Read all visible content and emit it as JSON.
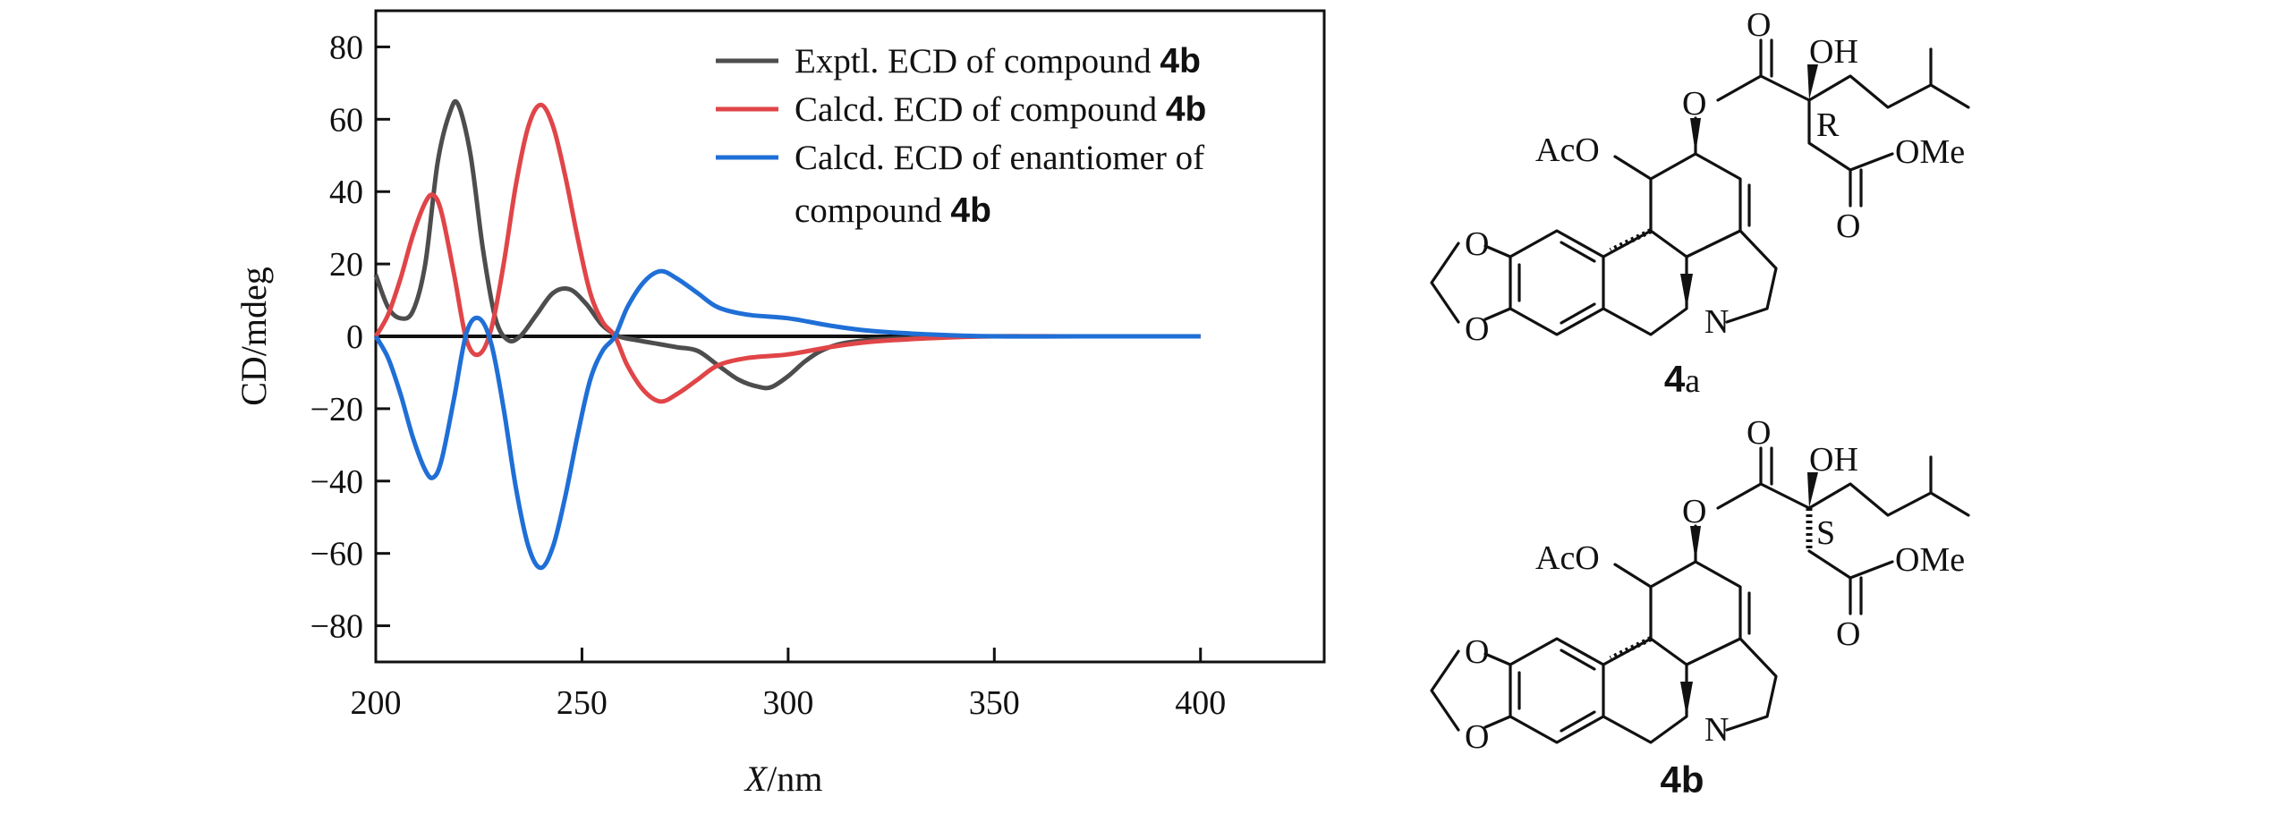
{
  "chart_data": {
    "type": "line",
    "xlabel": "X/nm",
    "xlabel_italic": "X",
    "xlabel_unit": "/nm",
    "ylabel": "CD/mdeg",
    "xlim": [
      200,
      430
    ],
    "ylim": [
      -90,
      90
    ],
    "xticks": [
      200,
      250,
      300,
      350,
      400
    ],
    "yticks": [
      80,
      60,
      40,
      20,
      0,
      -20,
      -40,
      -60,
      -80
    ],
    "ytick_labels": [
      "80",
      "60",
      "40",
      "20",
      "0",
      "−20",
      "−40",
      "−60",
      "−80"
    ],
    "grid": false,
    "legend_position": "top-right",
    "series": [
      {
        "name": "Exptl. ECD of compound 4b",
        "color": "#4d4d4d",
        "x": [
          200,
          203,
          206,
          209,
          212,
          215,
          218,
          220,
          223,
          226,
          229,
          232,
          235,
          239,
          243,
          247,
          251,
          255,
          259,
          263,
          268,
          273,
          278,
          283,
          288,
          293,
          296,
          300,
          304,
          308,
          313,
          320,
          330,
          345,
          360,
          380,
          400
        ],
        "y": [
          17,
          8,
          5,
          7,
          20,
          48,
          62,
          64,
          50,
          24,
          5,
          -1,
          0,
          6,
          12,
          13,
          9,
          3,
          0,
          -1,
          -2,
          -3,
          -4,
          -8,
          -12,
          -14,
          -14,
          -11,
          -7,
          -4,
          -2,
          -1,
          -0.5,
          0,
          0,
          0,
          0
        ]
      },
      {
        "name": "Calcd. ECD of compound 4b",
        "color": "#e04548",
        "x": [
          200,
          203,
          206,
          209,
          212,
          214,
          216,
          219,
          222,
          225,
          228,
          231,
          234,
          237,
          240,
          243,
          246,
          249,
          252,
          255,
          258,
          261,
          265,
          269,
          273,
          278,
          283,
          290,
          300,
          310,
          320,
          335,
          350,
          370,
          400
        ],
        "y": [
          0,
          6,
          16,
          28,
          37,
          39,
          34,
          17,
          -1,
          -5,
          2,
          20,
          42,
          58,
          64,
          58,
          44,
          27,
          12,
          4,
          0,
          -8,
          -15,
          -18,
          -16,
          -12,
          -8,
          -6,
          -5,
          -3,
          -1.5,
          -0.5,
          0,
          0,
          0
        ]
      },
      {
        "name": "Calcd. ECD of enantiomer of compound 4b",
        "color": "#1f6fd6",
        "x": [
          200,
          203,
          206,
          209,
          212,
          214,
          216,
          219,
          222,
          225,
          228,
          231,
          234,
          237,
          240,
          243,
          246,
          249,
          252,
          255,
          258,
          261,
          265,
          269,
          273,
          278,
          283,
          290,
          300,
          310,
          320,
          335,
          350,
          370,
          400
        ],
        "y": [
          0,
          -6,
          -16,
          -28,
          -37,
          -39,
          -34,
          -17,
          1,
          5,
          -2,
          -20,
          -42,
          -58,
          -64,
          -58,
          -44,
          -27,
          -12,
          -4,
          0,
          8,
          15,
          18,
          16,
          12,
          8,
          6,
          5,
          3,
          1.5,
          0.5,
          0,
          0,
          0
        ]
      }
    ],
    "legend": [
      {
        "prefix": "Exptl. ECD of compound ",
        "bold": "4b"
      },
      {
        "prefix": "Calcd. ECD of compound ",
        "bold": "4b"
      },
      {
        "prefix": "Calcd. ECD of enantiomer of",
        "line2_prefix": "compound ",
        "bold": "4b"
      }
    ]
  },
  "structures": [
    {
      "label_num": "4",
      "label_letter": "a",
      "stereo": "R",
      "labels": {
        "carbonyl_o": "O",
        "oh": "OH",
        "ester_o": "O",
        "aco": "AcO",
        "ome": "OMe",
        "ester_carbonyl_o": "O",
        "dioxole_o1": "O",
        "dioxole_o2": "O",
        "n": "N"
      }
    },
    {
      "label_num": "4",
      "label_letter": "b",
      "stereo": "S",
      "labels": {
        "carbonyl_o": "O",
        "oh": "OH",
        "ester_o": "O",
        "aco": "AcO",
        "ome": "OMe",
        "ester_carbonyl_o": "O",
        "dioxole_o1": "O",
        "dioxole_o2": "O",
        "n": "N"
      }
    }
  ]
}
